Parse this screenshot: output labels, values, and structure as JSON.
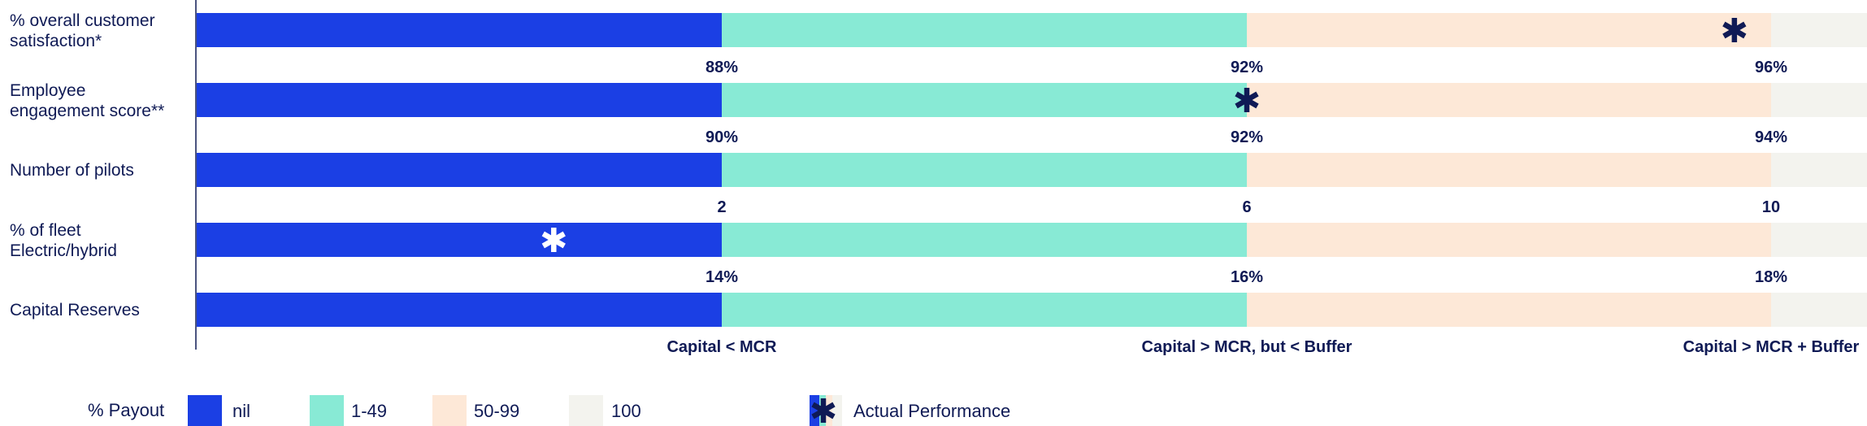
{
  "chart_data": {
    "type": "bar",
    "orientation": "horizontal",
    "bands": [
      {
        "name": "nil",
        "color": "#1b3fe4"
      },
      {
        "name": "1-49",
        "color": "#88ead5"
      },
      {
        "name": "50-99",
        "color": "#fde8d7"
      },
      {
        "name": "100",
        "color": "#f3f3ee"
      }
    ],
    "rows": [
      {
        "label_lines": [
          "% overall customer",
          "satisfaction*"
        ],
        "thresholds": [
          "88%",
          "92%",
          "96%"
        ],
        "actual_position": 2.93,
        "marker_color": "#0f1a55"
      },
      {
        "label_lines": [
          "Employee",
          "engagement score**"
        ],
        "thresholds": [
          "90%",
          "92%",
          "94%"
        ],
        "actual_position": 2.0,
        "marker_color": "#0f1a55"
      },
      {
        "label_lines": [
          "Number of pilots"
        ],
        "thresholds": [
          "2",
          "6",
          "10"
        ],
        "actual_position": null,
        "marker_color": null
      },
      {
        "label_lines": [
          "% of fleet",
          "Electric/hybrid"
        ],
        "thresholds": [
          "14%",
          "16%",
          "18%"
        ],
        "actual_position": 0.68,
        "marker_color": "#ffffff"
      },
      {
        "label_lines": [
          "Capital Reserves"
        ],
        "thresholds": [
          "Capital < MCR",
          "Capital > MCR, but < Buffer",
          "Capital > MCR + Buffer"
        ],
        "actual_position": null,
        "marker_color": null
      }
    ],
    "legend": {
      "title": "% Payout",
      "items": [
        "nil",
        "1-49",
        "50-99",
        "100"
      ],
      "marker_label": "Actual Performance"
    }
  }
}
